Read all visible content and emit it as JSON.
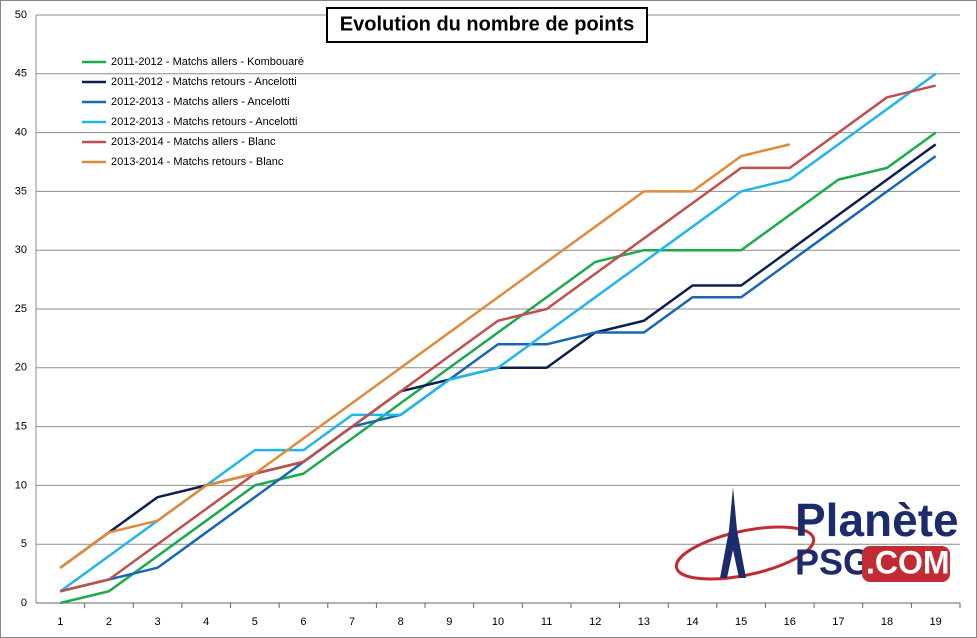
{
  "chart_data": {
    "type": "line",
    "title": "Evolution du nombre de points",
    "x": [
      1,
      2,
      3,
      4,
      5,
      6,
      7,
      8,
      9,
      10,
      11,
      12,
      13,
      14,
      15,
      16,
      17,
      18,
      19
    ],
    "xlim": [
      0.5,
      19.5
    ],
    "xticks": [
      1,
      2,
      3,
      4,
      5,
      6,
      7,
      8,
      9,
      10,
      11,
      12,
      13,
      14,
      15,
      16,
      17,
      18,
      19
    ],
    "ylim": [
      0,
      50
    ],
    "yticks": [
      0,
      5,
      10,
      15,
      20,
      25,
      30,
      35,
      40,
      45,
      50
    ],
    "grid": true,
    "legend": "upper left",
    "series": [
      {
        "name": "2011-2012 - Matchs allers - Kombouaré",
        "color": "#1aab4b",
        "values": [
          0,
          1,
          4,
          7,
          10,
          11,
          14,
          17,
          20,
          23,
          26,
          29,
          30,
          30,
          30,
          33,
          36,
          37,
          40
        ]
      },
      {
        "name": "2011-2012 - Matchs retours - Ancelotti",
        "color": "#0d1f4f",
        "values": [
          3,
          6,
          9,
          10,
          11,
          12,
          15,
          18,
          19,
          20,
          20,
          23,
          24,
          27,
          27,
          30,
          33,
          36,
          39
        ]
      },
      {
        "name": "2012-2013 - Matchs allers - Ancelotti",
        "color": "#1767b5",
        "values": [
          1,
          2,
          3,
          6,
          9,
          12,
          15,
          16,
          19,
          22,
          22,
          23,
          23,
          26,
          26,
          29,
          32,
          35,
          38
        ]
      },
      {
        "name": "2012-2013 - Matchs retours - Ancelotti",
        "color": "#21b5ec",
        "values": [
          1,
          4,
          7,
          10,
          13,
          13,
          16,
          16,
          19,
          20,
          23,
          26,
          29,
          32,
          35,
          36,
          39,
          42,
          45
        ]
      },
      {
        "name": "2013-2014 - Matchs allers - Blanc",
        "color": "#c0504d",
        "values": [
          1,
          2,
          5,
          8,
          11,
          12,
          15,
          18,
          21,
          24,
          25,
          28,
          31,
          34,
          37,
          37,
          40,
          43,
          44
        ]
      },
      {
        "name": "2013-2014 - Matchs retours - Blanc",
        "color": "#e08a3c",
        "values": [
          3,
          6,
          7,
          10,
          11,
          14,
          17,
          20,
          23,
          26,
          29,
          32,
          35,
          35,
          38,
          39,
          null,
          null,
          null
        ]
      }
    ],
    "logo": {
      "line1": "Planète",
      "line2": "PSG",
      "line3": ".COM"
    }
  }
}
